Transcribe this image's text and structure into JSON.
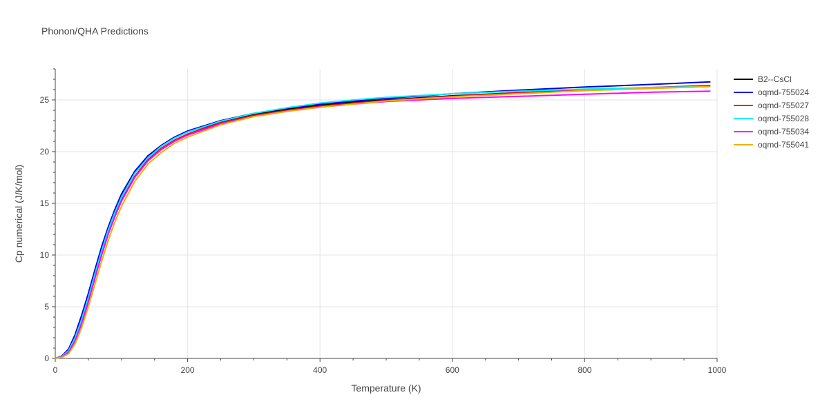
{
  "chart_data": {
    "type": "line",
    "title": "Phonon/QHA Predictions",
    "xlabel": "Temperature (K)",
    "ylabel": "Cp numerical (J/K/mol)",
    "xlim": [
      0,
      1000
    ],
    "ylim": [
      0,
      28
    ],
    "xticks": [
      0,
      200,
      400,
      600,
      800,
      1000
    ],
    "xtick_labels": [
      "0",
      "200",
      "400",
      "600",
      "800",
      "1000"
    ],
    "yticks": [
      0,
      5,
      10,
      15,
      20,
      25
    ],
    "ytick_labels": [
      "0",
      "5",
      "10",
      "15",
      "20",
      "25"
    ],
    "grid": true,
    "legend_position": "right",
    "x": [
      0,
      10,
      20,
      30,
      40,
      50,
      60,
      70,
      80,
      90,
      100,
      120,
      140,
      160,
      180,
      200,
      250,
      300,
      350,
      400,
      450,
      500,
      600,
      700,
      800,
      900,
      990
    ],
    "series": [
      {
        "name": "B2--CsCl",
        "color": "#000000",
        "values": [
          0,
          0.2,
          0.8,
          2.1,
          3.9,
          6.0,
          8.3,
          10.5,
          12.5,
          14.2,
          15.7,
          17.9,
          19.4,
          20.5,
          21.3,
          21.9,
          22.9,
          23.6,
          24.1,
          24.5,
          24.8,
          25.0,
          25.4,
          25.7,
          25.95,
          26.15,
          26.3
        ]
      },
      {
        "name": "oqmd-755024",
        "color": "#0000ee",
        "values": [
          0,
          0.25,
          0.9,
          2.3,
          4.2,
          6.3,
          8.6,
          10.8,
          12.7,
          14.4,
          15.9,
          18.1,
          19.6,
          20.6,
          21.4,
          22.0,
          23.0,
          23.7,
          24.2,
          24.6,
          24.9,
          25.15,
          25.6,
          25.95,
          26.25,
          26.5,
          26.75
        ]
      },
      {
        "name": "oqmd-755027",
        "color": "#ff0000",
        "values": [
          0,
          0.15,
          0.6,
          1.7,
          3.4,
          5.5,
          7.8,
          10.0,
          12.0,
          13.8,
          15.3,
          17.6,
          19.2,
          20.3,
          21.1,
          21.7,
          22.8,
          23.5,
          24.0,
          24.4,
          24.7,
          24.95,
          25.35,
          25.7,
          25.95,
          26.2,
          26.4
        ]
      },
      {
        "name": "oqmd-755028",
        "color": "#00eeff",
        "values": [
          0,
          0.2,
          0.75,
          2.0,
          3.8,
          5.9,
          8.2,
          10.4,
          12.4,
          14.1,
          15.6,
          17.9,
          19.4,
          20.5,
          21.3,
          21.9,
          22.95,
          23.7,
          24.25,
          24.7,
          25.0,
          25.25,
          25.6,
          25.85,
          26.05,
          26.2,
          26.3
        ]
      },
      {
        "name": "oqmd-755034",
        "color": "#ff00ff",
        "values": [
          0,
          0.15,
          0.6,
          1.7,
          3.4,
          5.5,
          7.8,
          10.0,
          12.0,
          13.7,
          15.2,
          17.5,
          19.1,
          20.2,
          21.0,
          21.6,
          22.7,
          23.4,
          23.9,
          24.3,
          24.6,
          24.85,
          25.15,
          25.35,
          25.55,
          25.75,
          25.85
        ]
      },
      {
        "name": "oqmd-755041",
        "color": "#eeb000",
        "values": [
          0,
          0.1,
          0.45,
          1.4,
          3.0,
          5.0,
          7.2,
          9.4,
          11.4,
          13.2,
          14.7,
          17.1,
          18.8,
          19.9,
          20.8,
          21.4,
          22.6,
          23.4,
          23.9,
          24.3,
          24.6,
          24.9,
          25.3,
          25.6,
          25.9,
          26.1,
          26.3
        ]
      }
    ]
  }
}
